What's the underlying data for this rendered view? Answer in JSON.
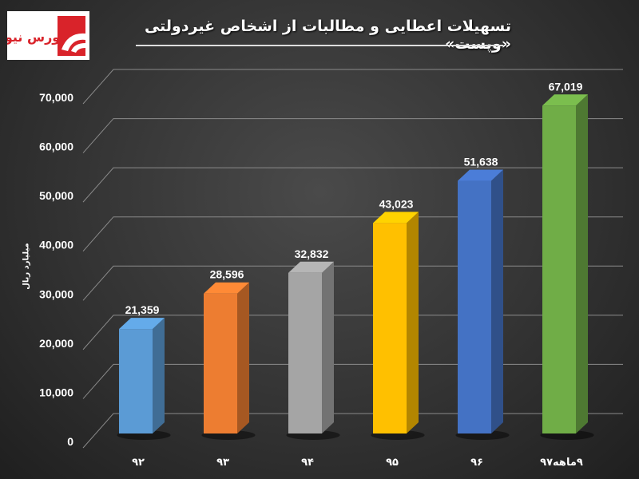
{
  "logo_text": "بورس نیوز",
  "chart_data": {
    "type": "bar",
    "title": "تسهیلات اعطایی و مطالبات از اشخاص غیردولتی «وپست»",
    "xlabel": "",
    "ylabel": "میلیارد ریال",
    "categories": [
      "۹۲",
      "۹۳",
      "۹۴",
      "۹۵",
      "۹۶",
      "۹ماهه۹۷"
    ],
    "values": [
      21359,
      28596,
      32832,
      43023,
      51638,
      67019
    ],
    "value_labels": [
      "21,359",
      "28,596",
      "32,832",
      "43,023",
      "51,638",
      "67,019"
    ],
    "colors": [
      "#5b9bd5",
      "#ed7d31",
      "#a5a5a5",
      "#ffc000",
      "#4472c4",
      "#70ad47"
    ],
    "ylim": [
      0,
      70000
    ],
    "yticks": [
      0,
      10000,
      20000,
      30000,
      40000,
      50000,
      60000,
      70000
    ],
    "ytick_labels": [
      "0",
      "10,000",
      "20,000",
      "30,000",
      "40,000",
      "50,000",
      "60,000",
      "70,000"
    ],
    "grid": true,
    "style": "3d-column"
  }
}
